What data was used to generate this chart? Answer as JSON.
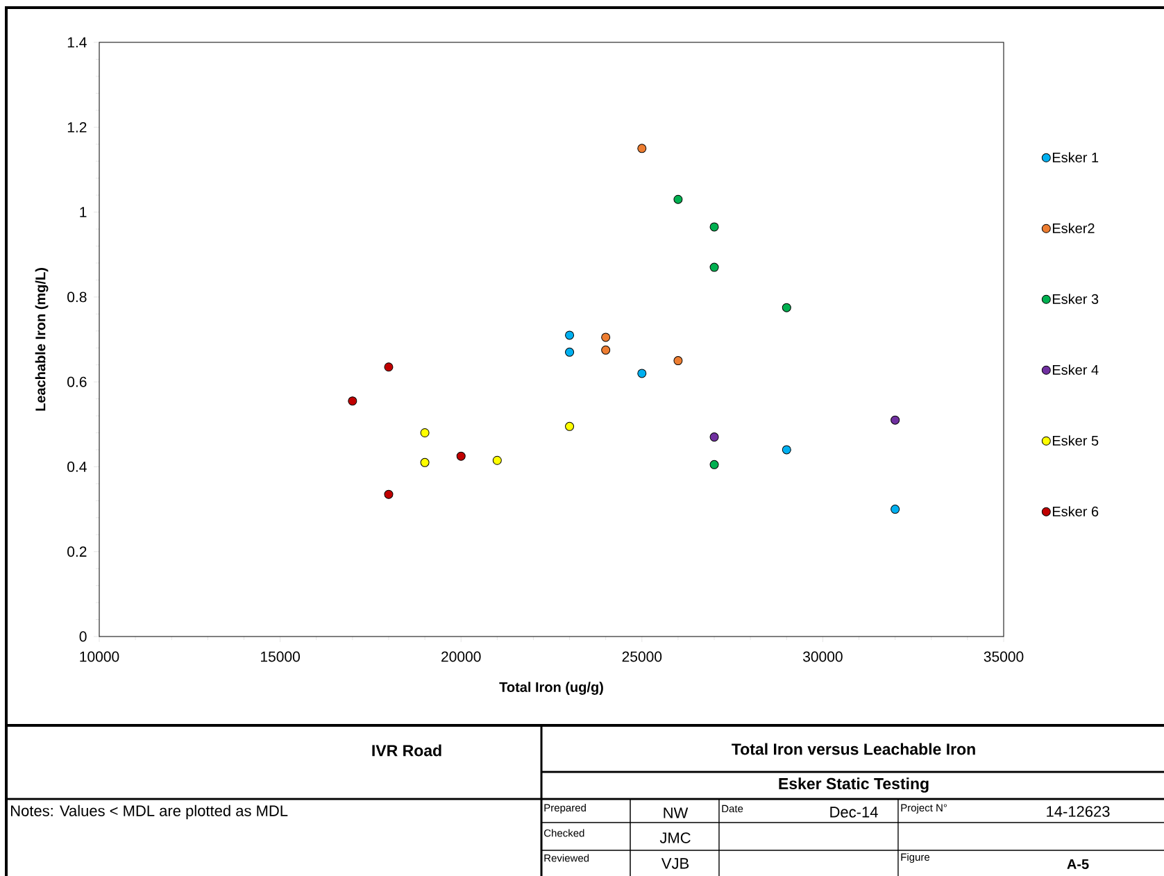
{
  "chart_data": {
    "type": "scatter",
    "title": "Total Iron versus Leachable Iron",
    "subtitle": "Esker Static Testing",
    "xlabel": "Total Iron (ug/g)",
    "ylabel": "Leachable Iron (mg/L)",
    "xlim": [
      10000,
      35000
    ],
    "xticks": [
      10000,
      15000,
      20000,
      25000,
      30000,
      35000
    ],
    "ylim": [
      0,
      1.4
    ],
    "yticks": [
      0,
      0.2,
      0.4,
      0.6,
      0.8,
      1,
      1.2,
      1.4
    ],
    "legend": "right",
    "marker": "circle",
    "series": [
      {
        "name": "Esker 1",
        "color": "#00b0f0",
        "x": [
          23000,
          23000,
          25000,
          29000,
          32000
        ],
        "values": [
          0.71,
          0.67,
          0.62,
          0.44,
          0.3
        ]
      },
      {
        "name": "Esker2",
        "color": "#ed7d31",
        "x": [
          25000,
          24000,
          24000,
          26000
        ],
        "values": [
          1.15,
          0.705,
          0.675,
          0.65
        ]
      },
      {
        "name": "Esker 3",
        "color": "#00b050",
        "x": [
          26000,
          27000,
          27000,
          29000,
          27000
        ],
        "values": [
          1.03,
          0.965,
          0.87,
          0.775,
          0.405
        ]
      },
      {
        "name": "Esker 4",
        "color": "#7030a0",
        "x": [
          27000,
          32000
        ],
        "values": [
          0.47,
          0.51
        ]
      },
      {
        "name": "Esker 5",
        "color": "#ffff00",
        "x": [
          19000,
          19000,
          21000,
          23000
        ],
        "values": [
          0.48,
          0.41,
          0.415,
          0.495
        ]
      },
      {
        "name": "Esker 6",
        "color": "#c00000",
        "x": [
          17000,
          18000,
          20000,
          18000
        ],
        "values": [
          0.555,
          0.635,
          0.425,
          0.335
        ]
      }
    ],
    "annotations": [
      "IVR Road",
      "Notes: Values < MDL are plotted as MDL",
      "Prepared",
      "NW",
      "Date",
      "Dec-14",
      "Project N°",
      "14-12623",
      "Checked",
      "JMC",
      "Reviewed",
      "VJB",
      "Figure",
      "A-5"
    ]
  }
}
